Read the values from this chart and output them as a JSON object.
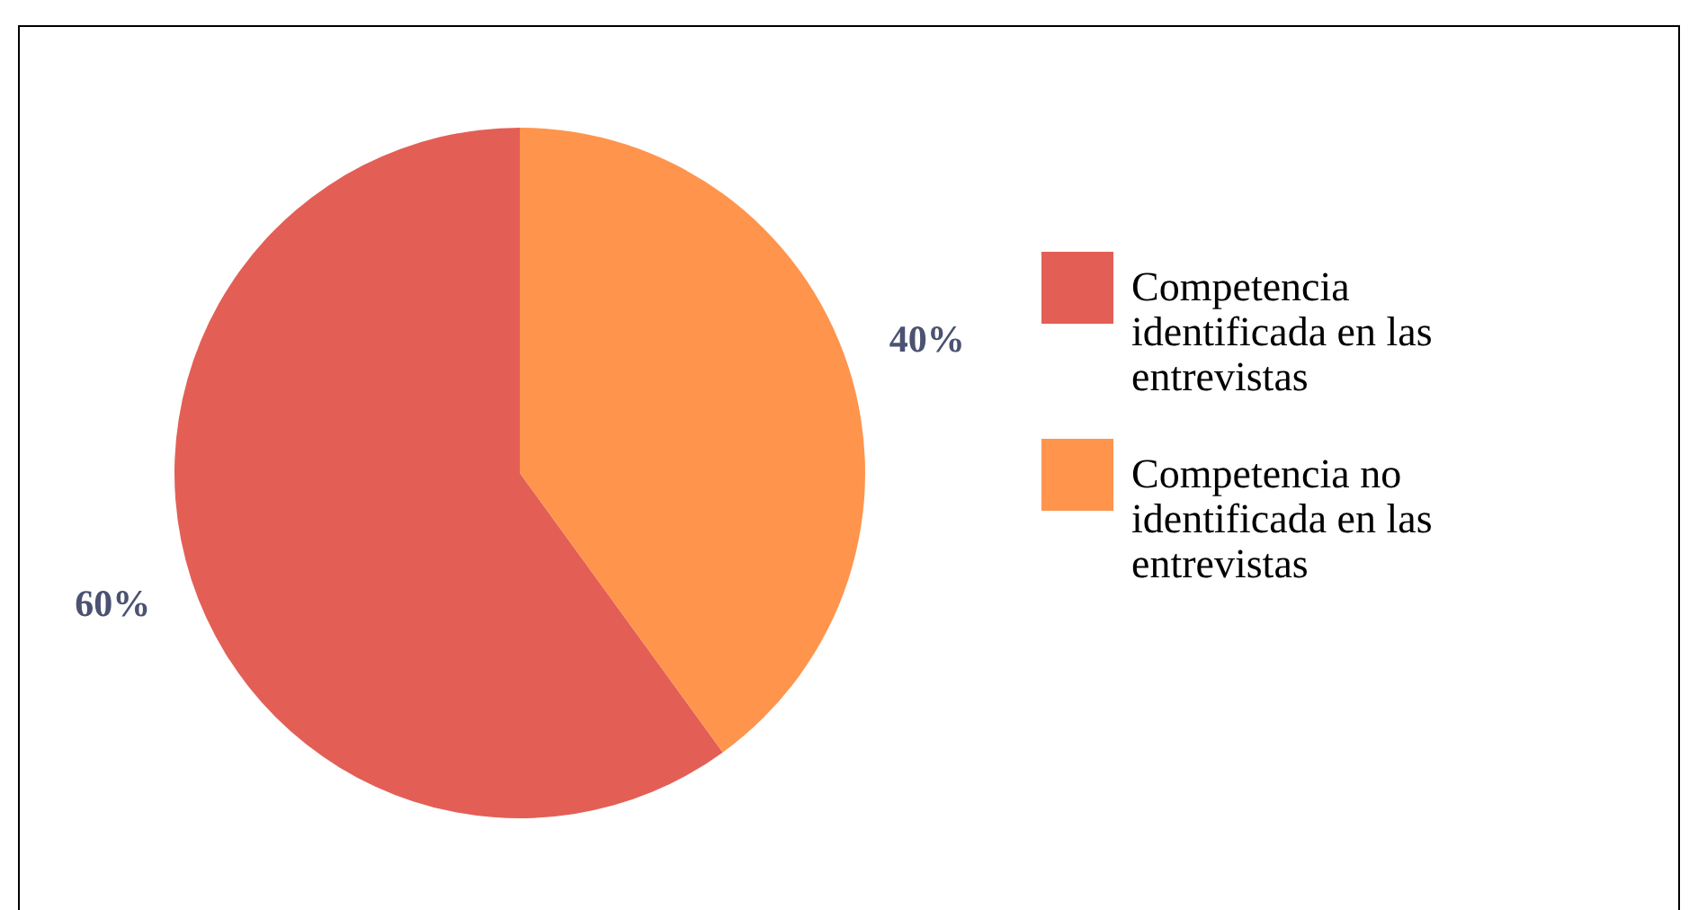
{
  "chart_data": {
    "type": "pie",
    "categories": [
      "Competencia identificada en las entrevistas",
      "Competencia no identificada en las entrevistas"
    ],
    "values": [
      60,
      40
    ],
    "colors": [
      "#e35f56",
      "#ff944d"
    ],
    "value_labels": [
      "60%",
      "40%"
    ],
    "legend": "right"
  }
}
